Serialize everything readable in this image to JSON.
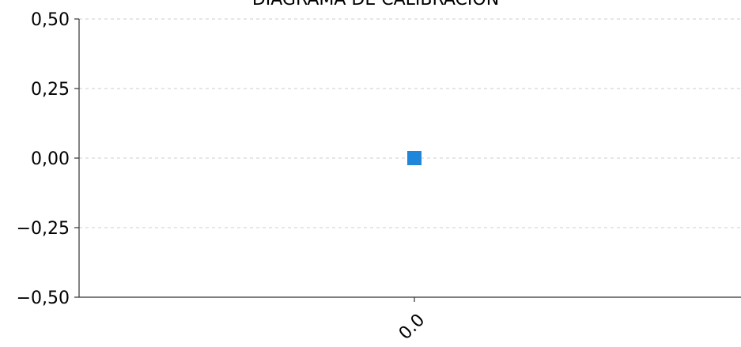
{
  "chart_data": {
    "type": "scatter",
    "title": "DIAGRAMA DE CALIBRACIÓN",
    "xlabel": "",
    "ylabel": "",
    "x_categories": [
      "0.0"
    ],
    "y_ticks": [
      "0,50",
      "0,25",
      "0,00",
      "−0,25",
      "−0,50"
    ],
    "y_tick_values": [
      0.5,
      0.25,
      0.0,
      -0.25,
      -0.5
    ],
    "ylim": [
      -0.5,
      0.5
    ],
    "grid": true,
    "series": [
      {
        "color": "#1f86d9",
        "marker": "square",
        "points": [
          {
            "x": "0.0",
            "y": 0.0
          }
        ]
      }
    ]
  }
}
